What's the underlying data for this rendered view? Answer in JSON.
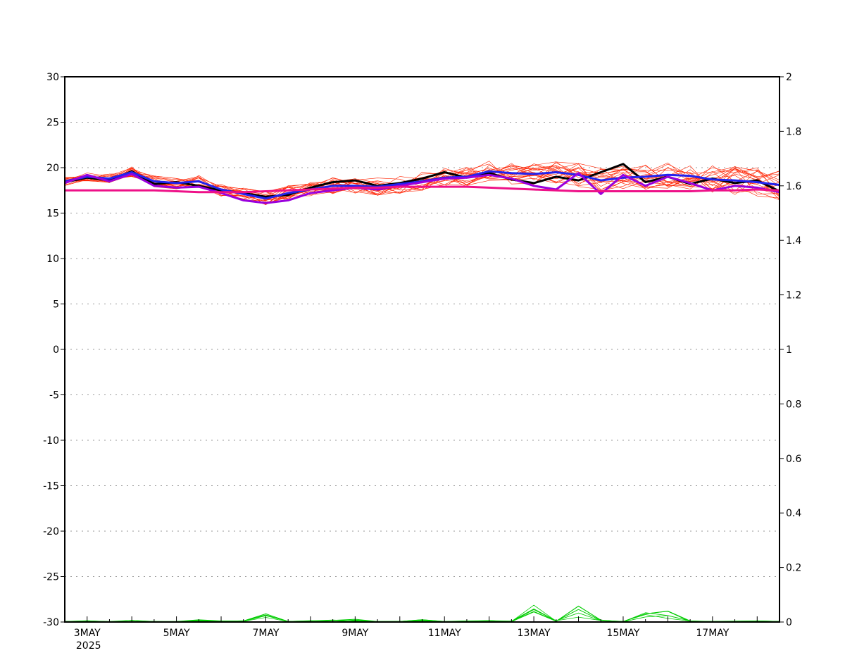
{
  "chart_data": {
    "type": "line",
    "title": "",
    "ylim": [
      -30,
      30
    ],
    "y2lim": [
      0,
      2
    ],
    "xlim_days": [
      "2025-05-02T12:00",
      "2025-05-18T12:00"
    ],
    "grid": "horizontal dotted",
    "yticks": [
      "30",
      "25",
      "20",
      "15",
      "10",
      "5",
      "0",
      "-5",
      "-10",
      "-15",
      "-20",
      "-25",
      "-30"
    ],
    "y2ticks": [
      "2",
      "1.8",
      "1.6",
      "1.4",
      "1.2",
      "1",
      "0.8",
      "0.6",
      "0.4",
      "0.2",
      "0"
    ],
    "xticks": [
      "3MAY",
      "5MAY",
      "7MAY",
      "9MAY",
      "11MAY",
      "13MAY",
      "15MAY",
      "17MAY"
    ],
    "x_year_label": "2025",
    "x_dates": [
      "2025-05-02T12:00",
      "2025-05-03T00:00",
      "2025-05-03T12:00",
      "2025-05-04T00:00",
      "2025-05-04T12:00",
      "2025-05-05T00:00",
      "2025-05-05T12:00",
      "2025-05-06T00:00",
      "2025-05-06T12:00",
      "2025-05-07T00:00",
      "2025-05-07T12:00",
      "2025-05-08T00:00",
      "2025-05-08T12:00",
      "2025-05-09T00:00",
      "2025-05-09T12:00",
      "2025-05-10T00:00",
      "2025-05-10T12:00",
      "2025-05-11T00:00",
      "2025-05-11T12:00",
      "2025-05-12T00:00",
      "2025-05-12T12:00",
      "2025-05-13T00:00",
      "2025-05-13T12:00",
      "2025-05-14T00:00",
      "2025-05-14T12:00",
      "2025-05-15T00:00",
      "2025-05-15T12:00",
      "2025-05-16T00:00",
      "2025-05-16T12:00",
      "2025-05-17T00:00",
      "2025-05-17T12:00",
      "2025-05-18T00:00",
      "2025-05-18T12:00"
    ],
    "series": [
      {
        "color": "#000000",
        "width": 3,
        "axis": "left",
        "values": [
          18.4,
          18.9,
          18.6,
          19.6,
          18.2,
          18.4,
          18.0,
          17.5,
          17.2,
          16.8,
          17.0,
          17.8,
          18.4,
          18.6,
          18.0,
          18.3,
          18.8,
          19.5,
          18.9,
          19.4,
          18.7,
          18.3,
          19.0,
          18.6,
          19.5,
          20.4,
          18.4,
          19.0,
          18.2,
          18.8,
          18.3,
          18.6,
          17.4
        ]
      },
      {
        "color": "#2222ee",
        "width": 3,
        "axis": "left",
        "values": [
          18.5,
          19.0,
          18.8,
          19.5,
          18.5,
          18.3,
          18.5,
          17.6,
          17.1,
          16.6,
          17.2,
          17.6,
          18.0,
          18.0,
          17.9,
          18.2,
          18.5,
          18.9,
          19.0,
          19.6,
          19.4,
          19.3,
          19.5,
          19.2,
          18.6,
          18.9,
          19.0,
          19.2,
          19.1,
          18.7,
          18.6,
          18.4,
          18.1
        ]
      },
      {
        "color": "#9900dd",
        "width": 3,
        "axis": "left",
        "values": [
          18.3,
          19.2,
          18.5,
          19.3,
          18.0,
          17.8,
          17.9,
          17.2,
          16.4,
          16.1,
          16.4,
          17.2,
          17.5,
          17.8,
          17.6,
          18.0,
          18.4,
          18.8,
          18.9,
          19.2,
          18.8,
          18.0,
          17.6,
          19.4,
          17.1,
          19.2,
          18.0,
          19.0,
          18.3,
          17.5,
          18.0,
          17.8,
          17.3
        ]
      },
      {
        "color": "#ee1188",
        "width": 3,
        "axis": "left",
        "values": [
          17.5,
          17.5,
          17.5,
          17.5,
          17.5,
          17.4,
          17.3,
          17.3,
          17.3,
          17.4,
          17.5,
          17.6,
          17.7,
          17.8,
          17.8,
          17.9,
          17.9,
          17.9,
          17.9,
          17.8,
          17.7,
          17.6,
          17.5,
          17.4,
          17.4,
          17.4,
          17.4,
          17.4,
          17.4,
          17.5,
          17.5,
          17.6,
          17.5
        ]
      },
      {
        "color": "#00cc00",
        "width": 1,
        "axis": "right",
        "values": [
          0.002,
          0.004,
          0.002,
          0.006,
          0.002,
          0.002,
          0.008,
          0.004,
          0.004,
          0.03,
          0.002,
          0.004,
          0.006,
          0.01,
          0.002,
          0.002,
          0.008,
          0.002,
          0.004,
          0.005,
          0.003,
          0.048,
          0.004,
          0.046,
          0.006,
          0.002,
          0.03,
          0.04,
          0.004,
          0.002,
          0.003,
          0.004,
          0.002
        ]
      }
    ],
    "ensemble": {
      "color": "#ff2200",
      "width": 0.6,
      "members": 20,
      "spread": 1.2
    }
  }
}
